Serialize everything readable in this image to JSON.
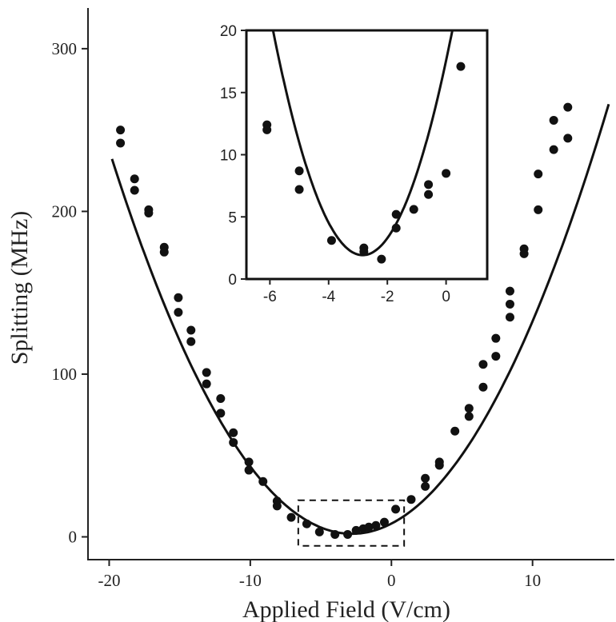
{
  "chart_data": [
    {
      "type": "scatter",
      "xlabel": "Applied Field (V/cm)",
      "ylabel": "Splitting (MHz)",
      "xlim": [
        -21.5,
        15.8
      ],
      "ylim": [
        -14,
        325
      ],
      "xticks": [
        -20,
        -10,
        0,
        10
      ],
      "yticks": [
        0,
        100,
        200,
        300
      ],
      "xtick_labels": [
        "-20",
        "-10",
        "0",
        "10"
      ],
      "ytick_labels": [
        "0",
        "100",
        "200",
        "300"
      ],
      "grid": false,
      "points": [
        {
          "x": -19.2,
          "y": 250
        },
        {
          "x": -19.2,
          "y": 242
        },
        {
          "x": -18.2,
          "y": 220
        },
        {
          "x": -18.2,
          "y": 213
        },
        {
          "x": -17.2,
          "y": 201
        },
        {
          "x": -17.2,
          "y": 199
        },
        {
          "x": -16.1,
          "y": 178
        },
        {
          "x": -16.1,
          "y": 175
        },
        {
          "x": -15.1,
          "y": 147
        },
        {
          "x": -15.1,
          "y": 138
        },
        {
          "x": -14.2,
          "y": 127
        },
        {
          "x": -14.2,
          "y": 120
        },
        {
          "x": -13.1,
          "y": 101
        },
        {
          "x": -13.1,
          "y": 94
        },
        {
          "x": -12.1,
          "y": 85
        },
        {
          "x": -12.1,
          "y": 76
        },
        {
          "x": -11.2,
          "y": 64
        },
        {
          "x": -11.2,
          "y": 58
        },
        {
          "x": -10.1,
          "y": 46
        },
        {
          "x": -10.1,
          "y": 41
        },
        {
          "x": -9.1,
          "y": 34
        },
        {
          "x": -8.1,
          "y": 22
        },
        {
          "x": -8.1,
          "y": 19
        },
        {
          "x": -7.1,
          "y": 12
        },
        {
          "x": -6.0,
          "y": 8
        },
        {
          "x": -5.1,
          "y": 3
        },
        {
          "x": -4.0,
          "y": 1.5
        },
        {
          "x": -3.1,
          "y": 1.5
        },
        {
          "x": -2.5,
          "y": 4
        },
        {
          "x": -2.0,
          "y": 5
        },
        {
          "x": -1.6,
          "y": 6
        },
        {
          "x": -1.1,
          "y": 7
        },
        {
          "x": -0.5,
          "y": 9
        },
        {
          "x": 0.3,
          "y": 17
        },
        {
          "x": 1.4,
          "y": 23
        },
        {
          "x": 2.4,
          "y": 36
        },
        {
          "x": 2.4,
          "y": 31
        },
        {
          "x": 3.4,
          "y": 46
        },
        {
          "x": 3.4,
          "y": 44
        },
        {
          "x": 4.5,
          "y": 65
        },
        {
          "x": 5.5,
          "y": 79
        },
        {
          "x": 5.5,
          "y": 74
        },
        {
          "x": 6.5,
          "y": 106
        },
        {
          "x": 6.5,
          "y": 92
        },
        {
          "x": 7.4,
          "y": 122
        },
        {
          "x": 7.4,
          "y": 111
        },
        {
          "x": 8.4,
          "y": 151
        },
        {
          "x": 8.4,
          "y": 143
        },
        {
          "x": 8.4,
          "y": 135
        },
        {
          "x": 9.4,
          "y": 177
        },
        {
          "x": 9.4,
          "y": 174
        },
        {
          "x": 10.4,
          "y": 223
        },
        {
          "x": 10.4,
          "y": 201
        },
        {
          "x": 11.5,
          "y": 256
        },
        {
          "x": 11.5,
          "y": 238
        },
        {
          "x": 12.5,
          "y": 264
        },
        {
          "x": 12.5,
          "y": 245
        }
      ],
      "fit_curve": {
        "type": "parabola",
        "a": 0.797,
        "x0": -2.8,
        "y0": 1.9,
        "x_range": [
          -19.8,
          15.4
        ]
      },
      "inset_region": {
        "x": [
          -6.6,
          0.9
        ],
        "y": [
          -5.5,
          22.5
        ]
      }
    },
    {
      "type": "scatter",
      "xlim": [
        -6.8,
        1.4
      ],
      "ylim": [
        0,
        20
      ],
      "xticks": [
        -6,
        -4,
        -2,
        0
      ],
      "yticks": [
        0,
        5,
        10,
        15,
        20
      ],
      "xtick_labels": [
        "-6",
        "-4",
        "-2",
        "0"
      ],
      "ytick_labels": [
        "0",
        "5",
        "10",
        "15",
        "20"
      ],
      "grid": false,
      "points": [
        {
          "x": -6.1,
          "y": 12.4
        },
        {
          "x": -6.1,
          "y": 12.0
        },
        {
          "x": -5.0,
          "y": 8.7
        },
        {
          "x": -5.0,
          "y": 7.2
        },
        {
          "x": -3.9,
          "y": 3.1
        },
        {
          "x": -2.8,
          "y": 2.5
        },
        {
          "x": -2.8,
          "y": 2.2
        },
        {
          "x": -2.2,
          "y": 1.6
        },
        {
          "x": -1.7,
          "y": 5.2
        },
        {
          "x": -1.7,
          "y": 4.1
        },
        {
          "x": -1.1,
          "y": 5.6
        },
        {
          "x": -0.6,
          "y": 7.6
        },
        {
          "x": -0.6,
          "y": 6.8
        },
        {
          "x": 0.0,
          "y": 8.5
        },
        {
          "x": 0.5,
          "y": 17.1
        }
      ],
      "fit_curve": {
        "type": "parabola",
        "a": 1.94,
        "x0": -2.84,
        "y0": 1.92,
        "x_range": [
          -6.8,
          1.4
        ]
      }
    }
  ]
}
